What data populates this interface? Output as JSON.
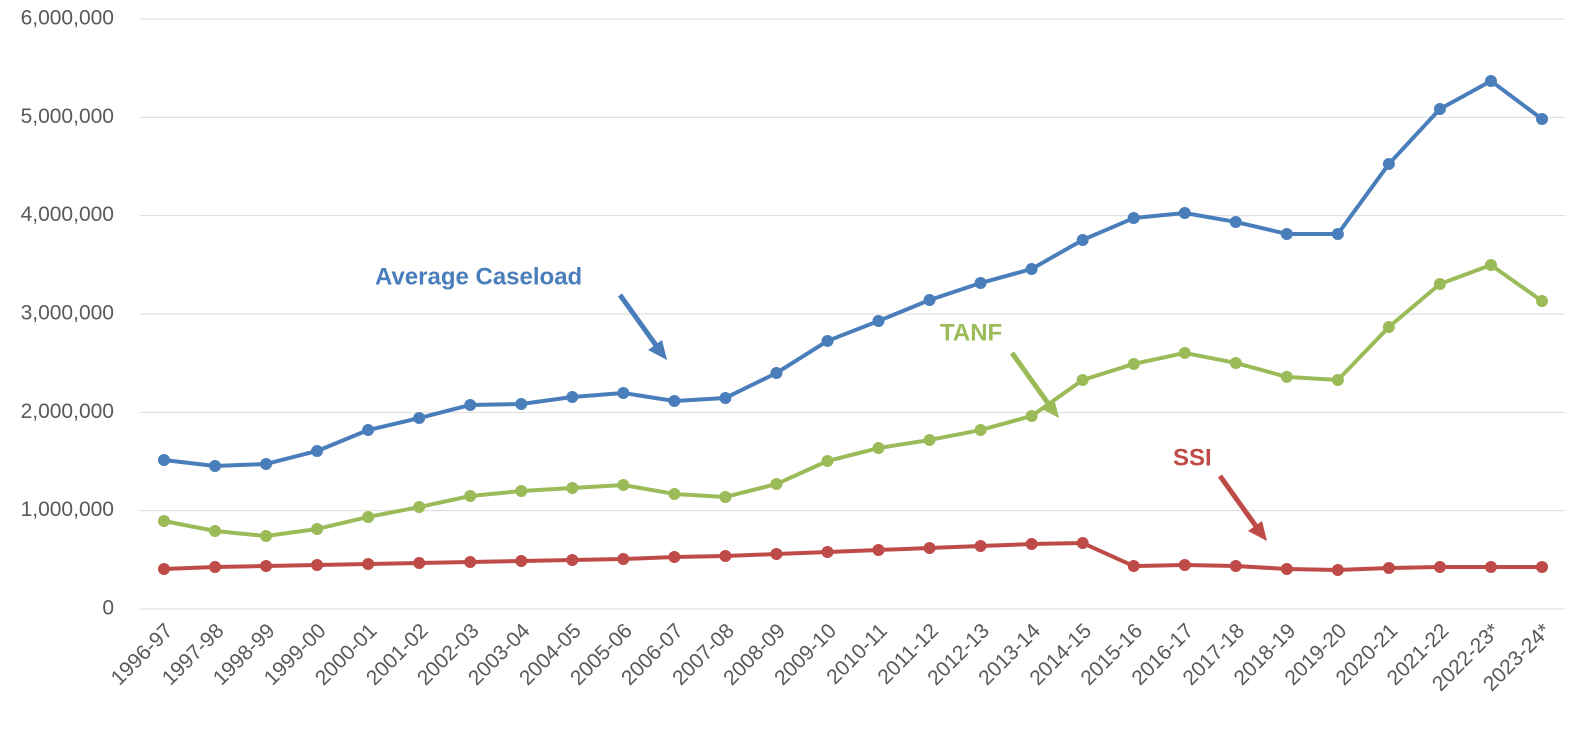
{
  "chart_data": {
    "type": "line",
    "categories": [
      "1996-97",
      "1997-98",
      "1998-99",
      "1999-00",
      "2000-01",
      "2001-02",
      "2002-03",
      "2003-04",
      "2004-05",
      "2005-06",
      "2006-07",
      "2007-08",
      "2008-09",
      "2009-10",
      "2010-11",
      "2011-12",
      "2012-13",
      "2013-14",
      "2014-15",
      "2015-16",
      "2016-17",
      "2017-18",
      "2018-19",
      "2019-20",
      "2020-21",
      "2021-22",
      "2022-23*",
      "2023-24*"
    ],
    "series": [
      {
        "name": "Average Caseload",
        "color": "#4a7ebb",
        "values": [
          1515000,
          1454000,
          1475000,
          1607000,
          1820000,
          1942000,
          2075000,
          2085000,
          2156000,
          2197000,
          2115000,
          2146000,
          2400000,
          2726000,
          2929000,
          3142000,
          3315000,
          3458000,
          3753000,
          3976000,
          4027000,
          3936000,
          3814000,
          3814000,
          4526000,
          5085000,
          5370000,
          4983000
        ]
      },
      {
        "name": "TANF",
        "color": "#9bbb59",
        "values": [
          895000,
          793000,
          742000,
          814000,
          936000,
          1037000,
          1149000,
          1200000,
          1230000,
          1261000,
          1170000,
          1139000,
          1271000,
          1505000,
          1637000,
          1719000,
          1820000,
          1963000,
          2329000,
          2492000,
          2604000,
          2502000,
          2360000,
          2329000,
          2868000,
          3305000,
          3498000,
          3132000
        ]
      },
      {
        "name": "SSI",
        "color": "#be4b48",
        "values": [
          407000,
          427000,
          437000,
          447000,
          458000,
          468000,
          478000,
          488000,
          498000,
          508000,
          529000,
          539000,
          559000,
          580000,
          600000,
          620000,
          641000,
          661000,
          671000,
          437000,
          447000,
          437000,
          407000,
          397000,
          417000,
          427000,
          427000,
          427000
        ]
      }
    ],
    "ylim": [
      0,
      6000000
    ],
    "yticks": [
      0,
      {
        "value": 1000000,
        "label": "1,000,000"
      },
      {
        "value": 2000000,
        "label": "2,000,000"
      },
      {
        "value": 3000000,
        "label": "3,000,000"
      },
      {
        "value": 4000000,
        "label": "4,000,000"
      },
      {
        "value": 5000000,
        "label": "5,000,000"
      },
      {
        "value": 6000000,
        "label": "6,000,000"
      }
    ],
    "grid": true
  }
}
